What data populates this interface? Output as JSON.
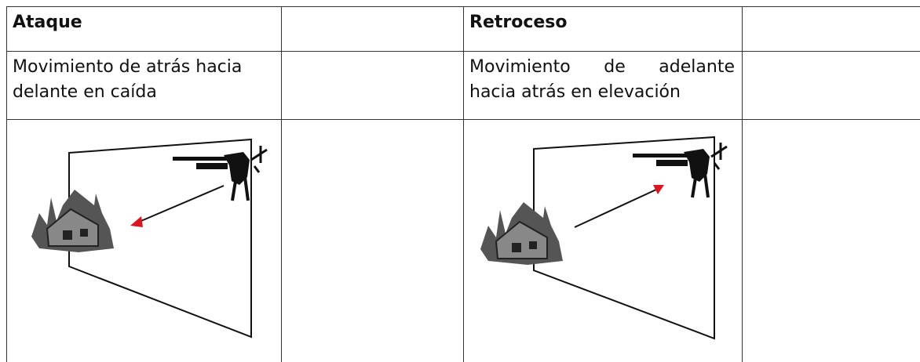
{
  "columns": [
    {
      "title": "Ataque",
      "description_lines": [
        "Movimiento de atrás hacia",
        "delante en caída"
      ]
    },
    {
      "title": "Retroceso",
      "description_lines": [
        "Movimiento de adelante",
        "hacia atrás en elevación"
      ]
    }
  ]
}
